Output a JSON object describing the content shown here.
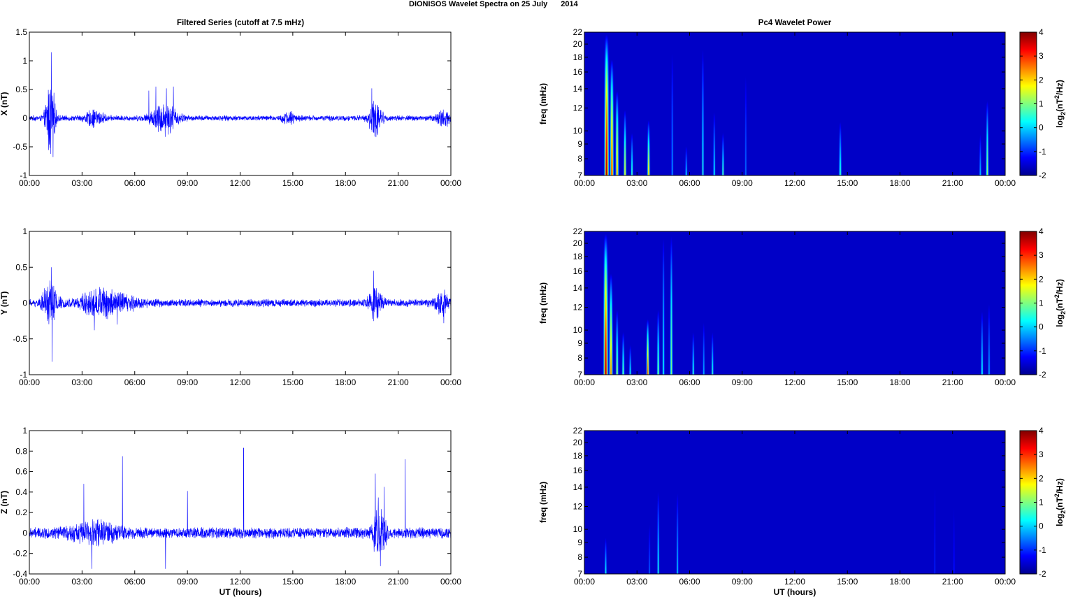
{
  "figure": {
    "title_part1": "DIONISOS Wavelet Spectra on 25 July",
    "title_part2": "2014"
  },
  "left_column": {
    "title": "Filtered Series (cutoff at 7.5 mHz)",
    "xlabel": "UT (hours)"
  },
  "right_column": {
    "title": "Pc4 Wavelet Power",
    "xlabel": "UT (hours)"
  },
  "x_tick_labels": [
    "00:00",
    "03:00",
    "06:00",
    "09:00",
    "12:00",
    "15:00",
    "18:00",
    "21:00",
    "00:00"
  ],
  "colorbar": {
    "label_text": "log",
    "label_sub": "2",
    "label_rest": "(nT",
    "label_sup": "2",
    "label_end": "/Hz)",
    "ticks": [
      "4",
      "3",
      "2",
      "1",
      "0",
      "-1",
      "-2"
    ],
    "range": [
      -2,
      4
    ],
    "colormap": "jet"
  },
  "colors": {
    "series_line": "#0000ff",
    "spectrogram_background": "#00008f"
  },
  "chart_data": [
    {
      "type": "line",
      "panel": "X",
      "ylabel": "X (nT)",
      "x_unit": "UT hours",
      "xlim": [
        0,
        24
      ],
      "ylim": [
        -1,
        1.5
      ],
      "y_tick_labels": [
        "1.5",
        "1",
        "0.5",
        "0",
        "-0.5",
        "-1"
      ],
      "noise_amplitude": 0.045,
      "bursts": [
        {
          "t": 1.2,
          "amp": 0.65,
          "width": 0.25
        },
        {
          "t": 3.7,
          "amp": 0.12,
          "width": 0.5
        },
        {
          "t": 7.7,
          "amp": 0.25,
          "width": 0.7
        },
        {
          "t": 14.8,
          "amp": 0.08,
          "width": 0.4
        },
        {
          "t": 19.7,
          "amp": 0.28,
          "width": 0.35
        },
        {
          "t": 23.6,
          "amp": 0.12,
          "width": 0.4
        }
      ],
      "spikes": [
        {
          "t": 1.25,
          "y": 1.15
        },
        {
          "t": 1.35,
          "y": -0.68
        },
        {
          "t": 6.8,
          "y": 0.48
        },
        {
          "t": 7.2,
          "y": 0.55
        },
        {
          "t": 7.8,
          "y": 0.52
        },
        {
          "t": 8.2,
          "y": 0.55
        },
        {
          "t": 19.5,
          "y": 0.52
        },
        {
          "t": 19.6,
          "y": -0.25
        }
      ],
      "series": [
        {
          "values_note": "filtered time series"
        }
      ]
    },
    {
      "type": "line",
      "panel": "Y",
      "ylabel": "Y (nT)",
      "x_unit": "UT hours",
      "xlim": [
        0,
        24
      ],
      "ylim": [
        -1,
        1
      ],
      "y_tick_labels": [
        "1",
        "0.5",
        "0",
        "-0.5",
        "-1"
      ],
      "noise_amplitude": 0.05,
      "bursts": [
        {
          "t": 1.2,
          "amp": 0.28,
          "width": 0.4
        },
        {
          "t": 3.8,
          "amp": 0.12,
          "width": 1.0
        },
        {
          "t": 5.0,
          "amp": 0.1,
          "width": 1.2
        },
        {
          "t": 19.7,
          "amp": 0.2,
          "width": 0.35
        },
        {
          "t": 23.5,
          "amp": 0.12,
          "width": 0.4
        }
      ],
      "spikes": [
        {
          "t": 1.25,
          "y": 0.5
        },
        {
          "t": 1.3,
          "y": -0.82
        },
        {
          "t": 3.7,
          "y": -0.38
        },
        {
          "t": 5.0,
          "y": -0.3
        },
        {
          "t": 19.6,
          "y": 0.45
        },
        {
          "t": 23.6,
          "y": -0.28
        }
      ],
      "series": [
        {
          "values_note": "filtered time series"
        }
      ]
    },
    {
      "type": "line",
      "panel": "Z",
      "ylabel": "Z (nT)",
      "xlabel": "UT (hours)",
      "x_unit": "UT hours",
      "xlim": [
        0,
        24
      ],
      "ylim": [
        -0.4,
        1
      ],
      "y_tick_labels": [
        "1",
        "0.8",
        "0.6",
        "0.4",
        "0.2",
        "0",
        "-0.2",
        "-0.4"
      ],
      "noise_amplitude": 0.05,
      "bursts": [
        {
          "t": 3.8,
          "amp": 0.08,
          "width": 1.4
        },
        {
          "t": 19.9,
          "amp": 0.25,
          "width": 0.35
        }
      ],
      "spikes": [
        {
          "t": 3.1,
          "y": 0.48
        },
        {
          "t": 3.55,
          "y": -0.35
        },
        {
          "t": 5.3,
          "y": 0.75
        },
        {
          "t": 7.75,
          "y": -0.35
        },
        {
          "t": 9.0,
          "y": 0.41
        },
        {
          "t": 12.2,
          "y": 0.83
        },
        {
          "t": 19.7,
          "y": 0.58
        },
        {
          "t": 20.2,
          "y": 0.45
        },
        {
          "t": 21.4,
          "y": 0.72
        }
      ],
      "series": [
        {
          "values_note": "filtered time series"
        }
      ]
    },
    {
      "type": "heatmap",
      "panel": "X",
      "ylabel": "freq (mHz)",
      "xlim": [
        0,
        24
      ],
      "ylim": [
        7,
        22
      ],
      "y_scale": "log",
      "y_ticks": [
        7,
        8,
        9,
        10,
        12,
        14,
        16,
        18,
        20,
        22
      ],
      "zlim": [
        -2,
        4
      ],
      "events": [
        {
          "t": 1.25,
          "fmax": 22,
          "peak": 4.0,
          "width": 0.1
        },
        {
          "t": 1.55,
          "fmax": 18,
          "peak": 3.2,
          "width": 0.08
        },
        {
          "t": 1.85,
          "fmax": 14,
          "peak": 2.5,
          "width": 0.07
        },
        {
          "t": 2.3,
          "fmax": 12,
          "peak": 1.8,
          "width": 0.06
        },
        {
          "t": 2.7,
          "fmax": 10,
          "peak": 0.8,
          "width": 0.05
        },
        {
          "t": 3.65,
          "fmax": 11,
          "peak": 2.2,
          "width": 0.06
        },
        {
          "t": 5.0,
          "fmax": 20,
          "peak": -0.5,
          "width": 0.05
        },
        {
          "t": 5.8,
          "fmax": 9,
          "peak": 0.0,
          "width": 0.05
        },
        {
          "t": 6.75,
          "fmax": 20,
          "peak": 0.3,
          "width": 0.05
        },
        {
          "t": 7.4,
          "fmax": 12,
          "peak": 0.2,
          "width": 0.05
        },
        {
          "t": 7.9,
          "fmax": 10,
          "peak": 0.8,
          "width": 0.05
        },
        {
          "t": 9.2,
          "fmax": 17,
          "peak": -0.8,
          "width": 0.05
        },
        {
          "t": 14.6,
          "fmax": 11,
          "peak": 0.5,
          "width": 0.06
        },
        {
          "t": 22.6,
          "fmax": 10,
          "peak": -0.2,
          "width": 0.05
        },
        {
          "t": 23.0,
          "fmax": 13,
          "peak": 1.2,
          "width": 0.06
        }
      ]
    },
    {
      "type": "heatmap",
      "panel": "Y",
      "ylabel": "freq (mHz)",
      "xlim": [
        0,
        24
      ],
      "ylim": [
        7,
        22
      ],
      "y_scale": "log",
      "y_ticks": [
        7,
        8,
        9,
        10,
        12,
        14,
        16,
        18,
        20,
        22
      ],
      "zlim": [
        -2,
        4
      ],
      "events": [
        {
          "t": 1.2,
          "fmax": 22,
          "peak": 3.8,
          "width": 0.1
        },
        {
          "t": 1.5,
          "fmax": 16,
          "peak": 2.6,
          "width": 0.08
        },
        {
          "t": 1.85,
          "fmax": 12,
          "peak": 1.2,
          "width": 0.06
        },
        {
          "t": 2.2,
          "fmax": 10,
          "peak": 0.8,
          "width": 0.06
        },
        {
          "t": 2.6,
          "fmax": 9,
          "peak": 0.3,
          "width": 0.05
        },
        {
          "t": 3.6,
          "fmax": 11,
          "peak": 3.0,
          "width": 0.06
        },
        {
          "t": 4.2,
          "fmax": 12,
          "peak": 1.0,
          "width": 0.06
        },
        {
          "t": 4.5,
          "fmax": 22,
          "peak": 0.2,
          "width": 0.05
        },
        {
          "t": 4.95,
          "fmax": 22,
          "peak": 1.0,
          "width": 0.06
        },
        {
          "t": 6.2,
          "fmax": 10,
          "peak": 0.5,
          "width": 0.05
        },
        {
          "t": 6.8,
          "fmax": 11,
          "peak": -0.3,
          "width": 0.05
        },
        {
          "t": 7.3,
          "fmax": 10,
          "peak": 0.4,
          "width": 0.05
        },
        {
          "t": 22.7,
          "fmax": 12,
          "peak": 0.3,
          "width": 0.05
        },
        {
          "t": 23.1,
          "fmax": 13,
          "peak": -0.4,
          "width": 0.05
        }
      ]
    },
    {
      "type": "heatmap",
      "panel": "Z",
      "ylabel": "freq (mHz)",
      "xlabel": "UT (hours)",
      "xlim": [
        0,
        24
      ],
      "ylim": [
        7,
        22
      ],
      "y_scale": "log",
      "y_ticks": [
        7,
        8,
        9,
        10,
        12,
        14,
        16,
        18,
        20,
        22
      ],
      "zlim": [
        -2,
        4
      ],
      "events": [
        {
          "t": 1.2,
          "fmax": 9.5,
          "peak": 0.2,
          "width": 0.05
        },
        {
          "t": 3.7,
          "fmax": 11,
          "peak": -0.8,
          "width": 0.04
        },
        {
          "t": 4.2,
          "fmax": 14,
          "peak": 0.3,
          "width": 0.05
        },
        {
          "t": 5.3,
          "fmax": 14,
          "peak": -0.2,
          "width": 0.05
        },
        {
          "t": 20.0,
          "fmax": 16,
          "peak": -1.3,
          "width": 0.04
        },
        {
          "t": 21.1,
          "fmax": 14,
          "peak": -1.4,
          "width": 0.04
        }
      ]
    }
  ]
}
